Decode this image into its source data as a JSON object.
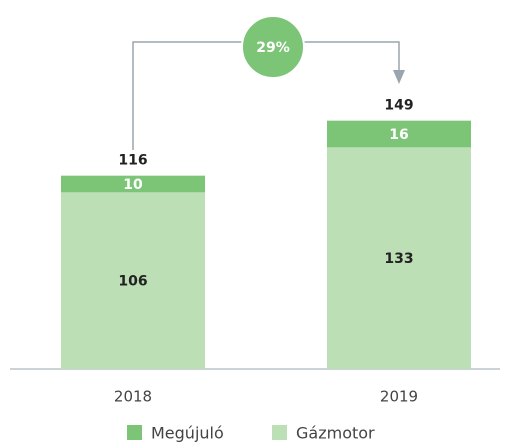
{
  "chart_data": {
    "type": "stacked_bar",
    "categories": [
      "2018",
      "2019"
    ],
    "series": [
      {
        "name": "Gázmotor",
        "color": "#bcdfb5",
        "values": [
          106,
          133
        ]
      },
      {
        "name": "Megújuló",
        "color": "#7cc576",
        "values": [
          10,
          16
        ]
      }
    ],
    "totals": [
      116,
      149
    ],
    "annotation": "29%",
    "ylim": [
      0,
      150
    ]
  }
}
